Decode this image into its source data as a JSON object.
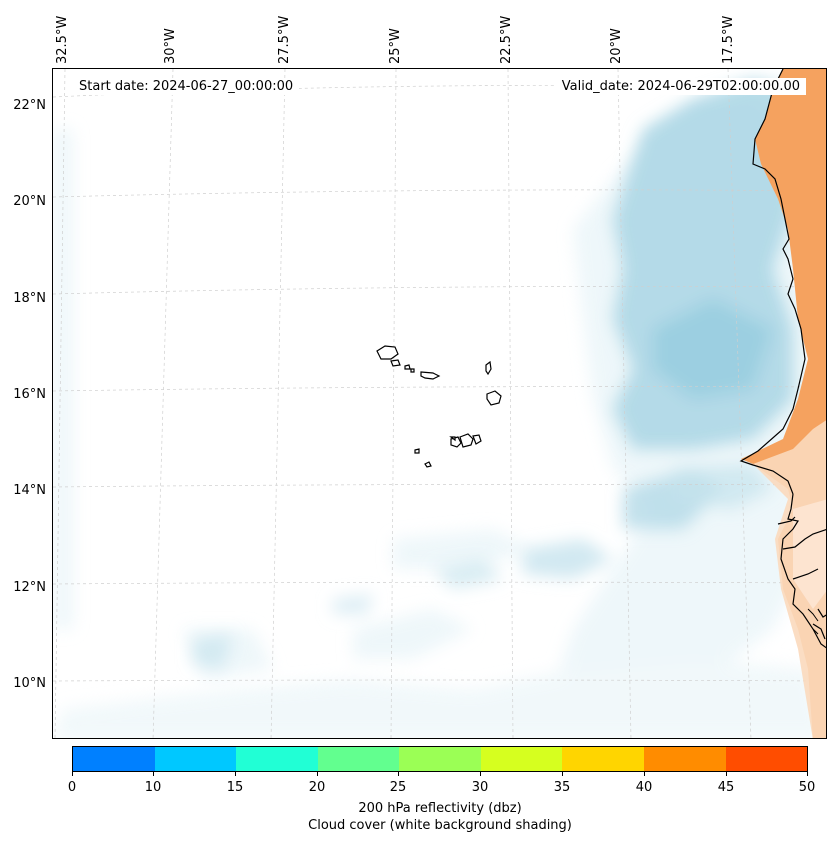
{
  "header": {
    "start_date": "Start date: 2024-06-27_00:00:00",
    "valid_date": "Valid_date: 2024-06-29T02:00:00.00"
  },
  "map": {
    "lon_labels": [
      "32.5°W",
      "30°W",
      "27.5°W",
      "25°W",
      "22.5°W",
      "20°W",
      "17.5°W"
    ],
    "lat_labels": [
      "22°N",
      "20°N",
      "18°N",
      "16°N",
      "14°N",
      "12°N",
      "10°N"
    ],
    "colors": {
      "land": "#f5a25f",
      "land_light": "#fbd9bc",
      "cloud": "#a9d5e4",
      "cloud_light": "#e3f2f7",
      "coast": "#000000",
      "grid": "#cfcfcf"
    }
  },
  "colorbar": {
    "ticks": [
      "0",
      "10",
      "15",
      "20",
      "25",
      "30",
      "35",
      "40",
      "45",
      "50"
    ],
    "colors": [
      "#0080ff",
      "#00c8ff",
      "#21ffd5",
      "#62ff8f",
      "#9bff55",
      "#d6ff1f",
      "#ffd500",
      "#ff8c00",
      "#ff4d00"
    ],
    "label_1": "200 hPa reflectivity (dbz)",
    "label_2": "Cloud cover (white background shading)"
  }
}
